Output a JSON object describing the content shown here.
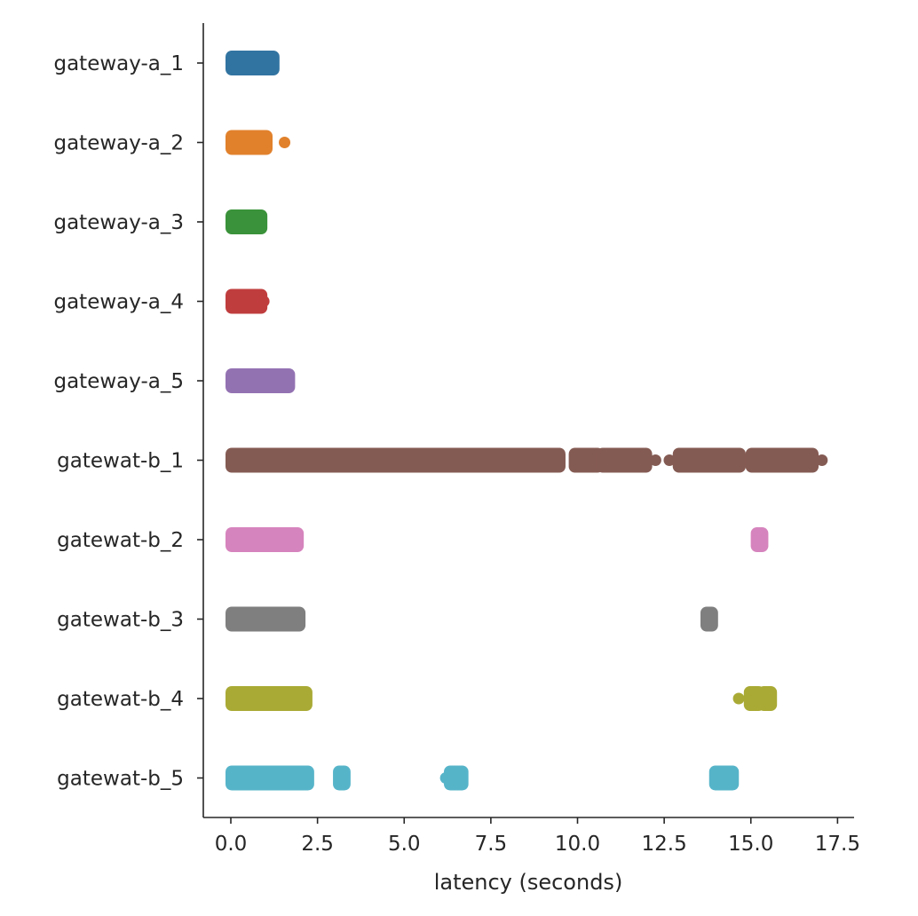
{
  "chart_data": {
    "type": "scatter",
    "title": "",
    "xlabel": "latency (seconds)",
    "ylabel": "",
    "xlim": [
      -0.8,
      18.0
    ],
    "grid": false,
    "legend": "none",
    "xticks": [
      "0.0",
      "2.5",
      "5.0",
      "7.5",
      "10.0",
      "12.5",
      "15.0",
      "17.5"
    ],
    "categories": [
      "gateway-a_1",
      "gateway-a_2",
      "gateway-a_3",
      "gateway-a_4",
      "gateway-a_5",
      "gatewat-b_1",
      "gatewat-b_2",
      "gatewat-b_3",
      "gatewat-b_4",
      "gatewat-b_5"
    ],
    "series": [
      {
        "category": "gateway-a_1",
        "color": "#3274a1",
        "x_ranges": [
          [
            0.0,
            1.25
          ]
        ],
        "points": []
      },
      {
        "category": "gateway-a_2",
        "color": "#e1812c",
        "x_ranges": [
          [
            0.0,
            1.05
          ]
        ],
        "points": [
          1.55
        ]
      },
      {
        "category": "gateway-a_3",
        "color": "#3a923a",
        "x_ranges": [
          [
            0.0,
            0.9
          ]
        ],
        "points": []
      },
      {
        "category": "gateway-a_4",
        "color": "#c03d3e",
        "x_ranges": [
          [
            0.0,
            0.9
          ]
        ],
        "points": [
          0.95
        ]
      },
      {
        "category": "gateway-a_5",
        "color": "#9372b2",
        "x_ranges": [
          [
            0.0,
            1.7
          ]
        ],
        "points": []
      },
      {
        "category": "gatewat-b_1",
        "color": "#845b53",
        "x_ranges": [
          [
            0.0,
            9.5
          ],
          [
            9.9,
            10.6
          ],
          [
            10.7,
            12.0
          ],
          [
            12.9,
            14.7
          ],
          [
            15.0,
            16.8
          ]
        ],
        "points": [
          12.25,
          12.65,
          17.05
        ]
      },
      {
        "category": "gatewat-b_2",
        "color": "#d684bd",
        "x_ranges": [
          [
            0.0,
            1.95
          ],
          [
            15.15,
            15.35
          ]
        ],
        "points": []
      },
      {
        "category": "gatewat-b_3",
        "color": "#7f7f7f",
        "x_ranges": [
          [
            0.0,
            2.0
          ],
          [
            13.7,
            13.9
          ]
        ],
        "points": []
      },
      {
        "category": "gatewat-b_4",
        "color": "#a9aa35",
        "x_ranges": [
          [
            0.0,
            2.2
          ],
          [
            14.95,
            15.25
          ],
          [
            15.35,
            15.6
          ]
        ],
        "points": [
          14.65
        ]
      },
      {
        "category": "gatewat-b_5",
        "color": "#56b4c9",
        "x_ranges": [
          [
            0.0,
            2.25
          ],
          [
            3.1,
            3.3
          ],
          [
            6.3,
            6.7
          ],
          [
            13.95,
            14.5
          ]
        ],
        "points": [
          6.2
        ]
      }
    ]
  }
}
